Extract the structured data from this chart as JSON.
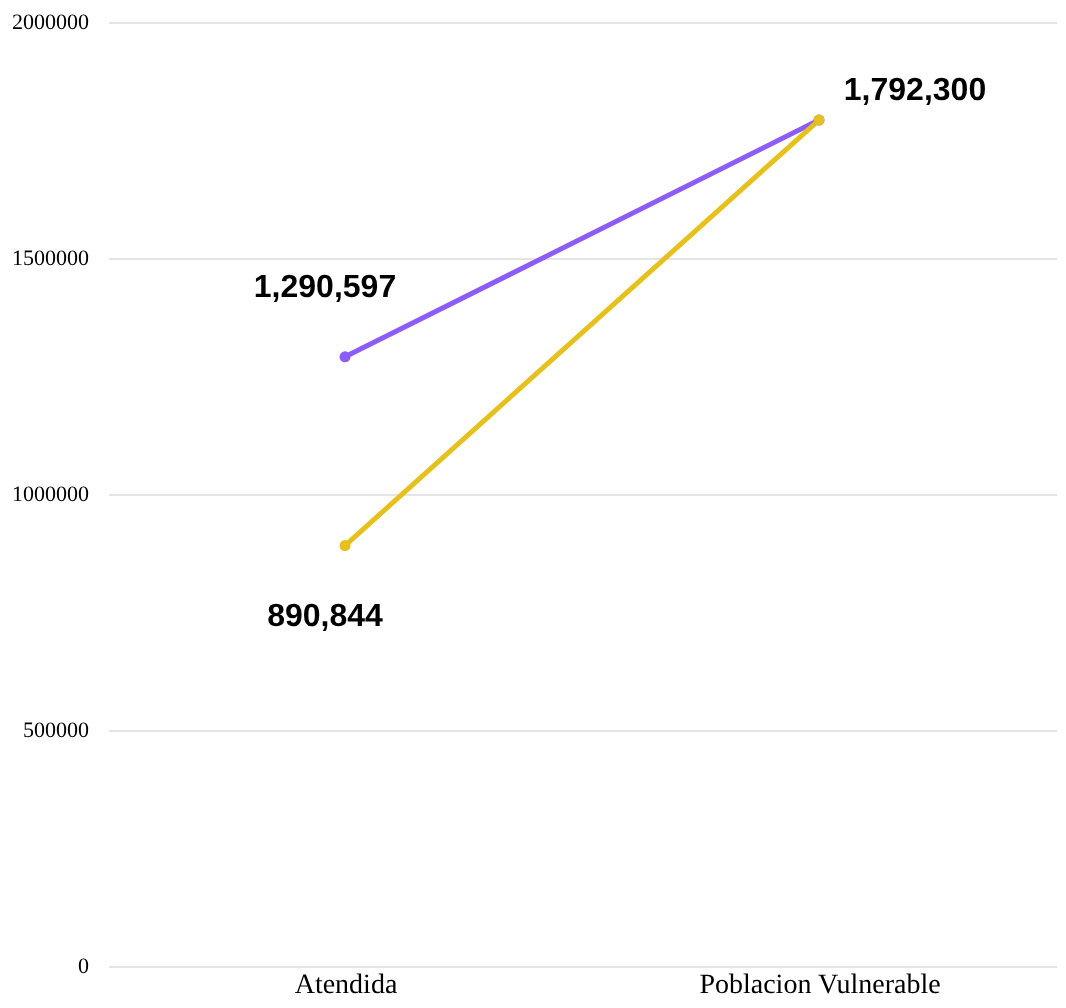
{
  "chart_data": {
    "type": "line",
    "categories": [
      "Atendida",
      "Poblacion Vulnerable"
    ],
    "series": [
      {
        "color": "#8b5cf6",
        "values": [
          1290597,
          1792300
        ],
        "value_labels": [
          "1,290,597",
          "1,792,300"
        ]
      },
      {
        "color": "#e6c01c",
        "values": [
          890844,
          1792300
        ],
        "value_labels": [
          "890,844",
          null
        ]
      }
    ],
    "ylim": [
      0,
      2000000
    ],
    "yticks": [
      0,
      500000,
      1000000,
      1500000,
      2000000
    ],
    "grid": "y",
    "legend": false,
    "marker": "circle",
    "line_style": "solid"
  }
}
